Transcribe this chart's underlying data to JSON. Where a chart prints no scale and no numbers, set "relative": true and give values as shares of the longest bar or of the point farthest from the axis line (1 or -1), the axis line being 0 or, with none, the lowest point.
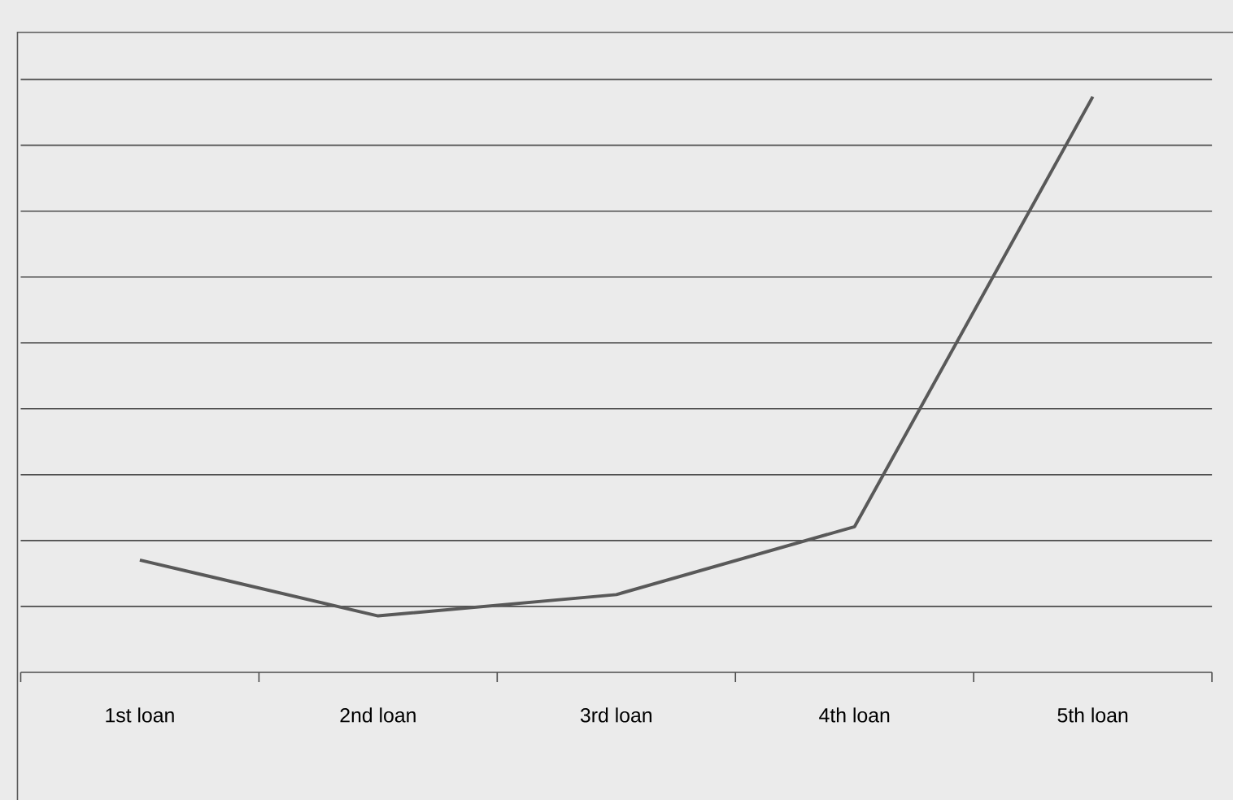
{
  "chart_data": {
    "type": "line",
    "relative": true,
    "grid": "y",
    "categories": [
      "1st loan",
      "2nd loan",
      "3rd loan",
      "4th loan",
      "5th loan"
    ],
    "series": [
      {
        "color": "#595959",
        "values": [
          0.195,
          0.098,
          0.135,
          0.253,
          1
        ]
      }
    ],
    "marker": "none",
    "line_style": "solid"
  }
}
